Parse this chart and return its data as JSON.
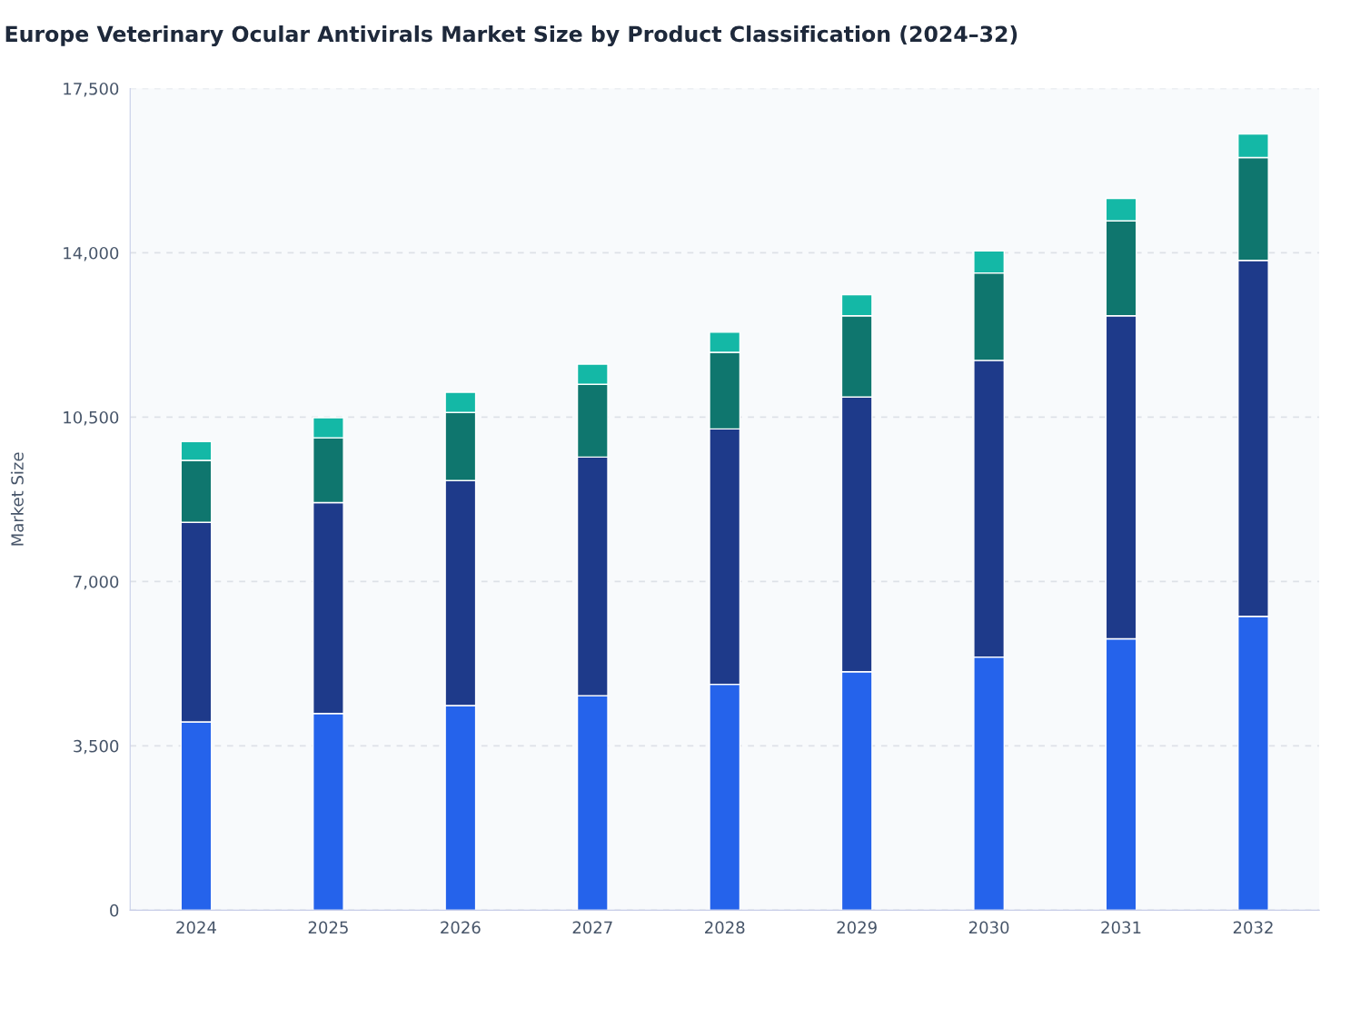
{
  "chart_data": {
    "type": "bar",
    "title": "Europe Veterinary Ocular Antivirals Market Size by Product Classification (2024–32)",
    "ylabel": "Market Size",
    "categories": [
      "2024",
      "2025",
      "2026",
      "2027",
      "2028",
      "2029",
      "2030",
      "2031",
      "2032"
    ],
    "stacked": true,
    "series": [
      {
        "color": "#2563eb",
        "values": [
          4010,
          4190,
          4360,
          4570,
          4810,
          5080,
          5390,
          5780,
          6260
        ]
      },
      {
        "color": "#1e3a8a",
        "values": [
          4250,
          4490,
          4790,
          5080,
          5440,
          5850,
          6320,
          6880,
          7580
        ]
      },
      {
        "color": "#0f766e",
        "values": [
          1320,
          1380,
          1450,
          1550,
          1630,
          1730,
          1860,
          2020,
          2190
        ]
      },
      {
        "color": "#14b8a6",
        "values": [
          400,
          430,
          430,
          430,
          430,
          450,
          470,
          480,
          500
        ]
      }
    ],
    "ylim": [
      0,
      17500
    ],
    "yticks": [
      0,
      {
        "value": 3500,
        "label": "3,500"
      },
      {
        "value": 7000,
        "label": "7,000"
      },
      {
        "value": 10500,
        "label": "10,500"
      },
      {
        "value": 14000,
        "label": "14,000"
      },
      {
        "value": 17500,
        "label": "17,500"
      }
    ],
    "grid": "y"
  }
}
